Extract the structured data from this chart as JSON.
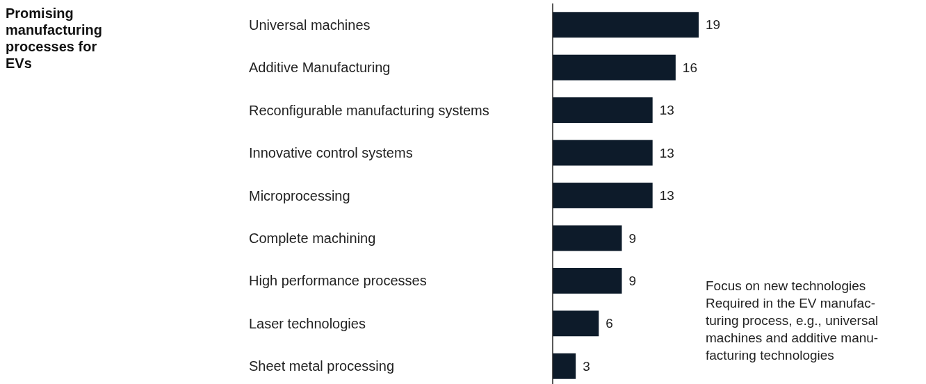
{
  "chart_data": {
    "type": "bar",
    "orientation": "horizontal",
    "title": "Promising\nmanufacturing\nprocesses for\nEVs",
    "categories": [
      "Universal machines",
      "Additive Manufacturing",
      "Reconfigurable manufacturing systems",
      "Innovative control systems",
      "Microprocessing",
      "Complete machining",
      "High performance processes",
      "Laser technologies",
      "Sheet metal processing"
    ],
    "values": [
      19,
      16,
      13,
      13,
      13,
      9,
      9,
      6,
      3
    ],
    "color": "#0d1b2a",
    "data_labels": true,
    "relative": false,
    "annotations": [
      "Focus on new technologies\nRequired in the EV manufac-\nturing process, e.g., universal\nmachines and additive manu-\nfacturing technologies"
    ]
  }
}
